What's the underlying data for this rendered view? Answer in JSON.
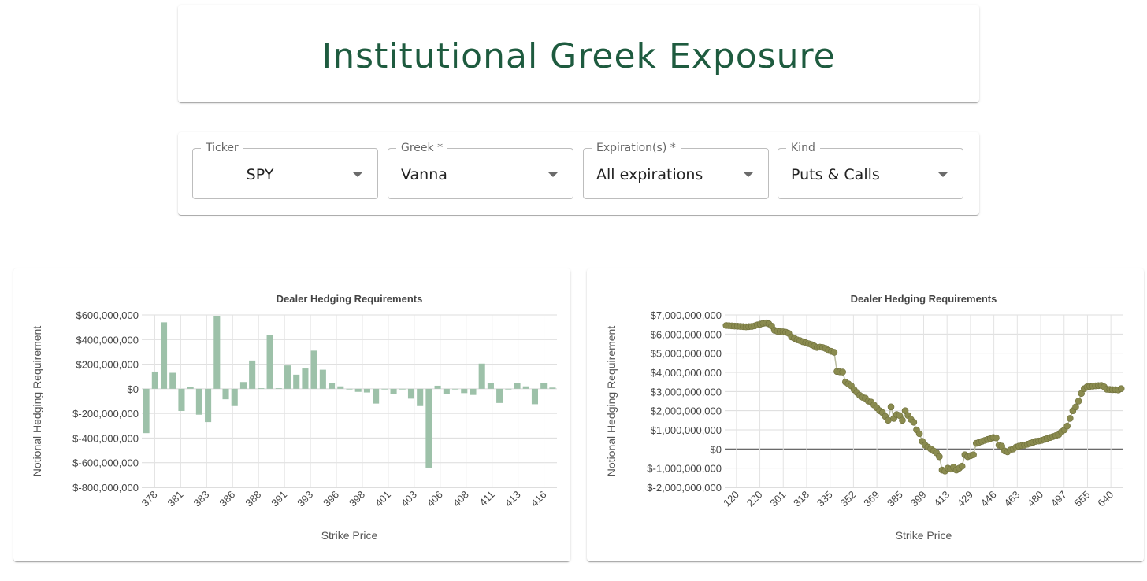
{
  "header": {
    "title": "Institutional Greek Exposure"
  },
  "controls": [
    {
      "label": "Ticker",
      "value": "SPY"
    },
    {
      "label": "Greek *",
      "value": "Vanna"
    },
    {
      "label": "Expiration(s) *",
      "value": "All expirations"
    },
    {
      "label": "Kind",
      "value": "Puts & Calls"
    }
  ],
  "icons": {
    "dropdown": "chevron-down-icon"
  },
  "colors": {
    "title": "#1e5b3f",
    "bar": "#9dc1a9",
    "point": "#8a8b4f",
    "line": "#b9bca0"
  },
  "chart_data": [
    {
      "type": "bar",
      "title": "Dealer Hedging Requirements",
      "xlabel": "Strike Price",
      "ylabel": "Notional Hedging Requirement",
      "ylim": [
        -800000000,
        600000000
      ],
      "yticks": [
        600000000,
        400000000,
        200000000,
        0,
        -200000000,
        -400000000,
        -600000000,
        -800000000
      ],
      "ytick_labels": [
        "$600,000,000",
        "$400,000,000",
        "$200,000,000",
        "$0",
        "$-200,000,000",
        "$-400,000,000",
        "$-600,000,000",
        "$-800,000,000"
      ],
      "xtick_labels": [
        "378",
        "381",
        "383",
        "386",
        "388",
        "391",
        "393",
        "396",
        "398",
        "401",
        "403",
        "406",
        "408",
        "411",
        "413",
        "416"
      ],
      "grid": true,
      "values": [
        -360000000,
        140000000,
        540000000,
        130000000,
        -180000000,
        15000000,
        -210000000,
        -270000000,
        590000000,
        -85000000,
        -140000000,
        55000000,
        230000000,
        5000000,
        440000000,
        5000000,
        190000000,
        115000000,
        165000000,
        310000000,
        155000000,
        50000000,
        20000000,
        0,
        -25000000,
        -30000000,
        -120000000,
        0,
        -40000000,
        0,
        -80000000,
        -140000000,
        -640000000,
        25000000,
        -40000000,
        0,
        -35000000,
        -50000000,
        205000000,
        50000000,
        -115000000,
        0,
        50000000,
        20000000,
        -125000000,
        50000000,
        10000000
      ]
    },
    {
      "type": "scatter",
      "title": "Dealer Hedging Requirements",
      "xlabel": "Strike Price",
      "ylabel": "Notional Hedging Requirement",
      "ylim": [
        -2000000000,
        7000000000
      ],
      "yticks": [
        7000000000,
        6000000000,
        5000000000,
        4000000000,
        3000000000,
        2000000000,
        1000000000,
        0,
        -1000000000,
        -2000000000
      ],
      "ytick_labels": [
        "$7,000,000,000",
        "$6,000,000,000",
        "$5,000,000,000",
        "$4,000,000,000",
        "$3,000,000,000",
        "$2,000,000,000",
        "$1,000,000,000",
        "$0",
        "$-1,000,000,000",
        "$-2,000,000,000"
      ],
      "xtick_labels": [
        "120",
        "220",
        "301",
        "318",
        "335",
        "352",
        "369",
        "385",
        "399",
        "413",
        "429",
        "446",
        "463",
        "480",
        "497",
        "555",
        "640"
      ],
      "grid": true,
      "values": [
        6450000000,
        6440000000,
        6430000000,
        6420000000,
        6410000000,
        6400000000,
        6390000000,
        6380000000,
        6390000000,
        6400000000,
        6430000000,
        6480000000,
        6520000000,
        6560000000,
        6580000000,
        6540000000,
        6420000000,
        6200000000,
        6150000000,
        6140000000,
        6120000000,
        6100000000,
        6040000000,
        5850000000,
        5780000000,
        5700000000,
        5660000000,
        5600000000,
        5550000000,
        5500000000,
        5450000000,
        5380000000,
        5300000000,
        5320000000,
        5300000000,
        5250000000,
        5150000000,
        5100000000,
        5050000000,
        4050000000,
        4030000000,
        4020000000,
        3500000000,
        3400000000,
        3300000000,
        3100000000,
        2950000000,
        2800000000,
        2700000000,
        2650000000,
        2500000000,
        2450000000,
        2300000000,
        2150000000,
        2000000000,
        1900000000,
        1700000000,
        1500000000,
        2200000000,
        1600000000,
        1800000000,
        1750000000,
        1500000000,
        2000000000,
        1750000000,
        1550000000,
        1400000000,
        1000000000,
        800000000,
        400000000,
        200000000,
        100000000,
        0,
        -100000000,
        -200000000,
        -400000000,
        -1100000000,
        -1150000000,
        -1000000000,
        -1050000000,
        -950000000,
        -1100000000,
        -1000000000,
        -900000000,
        -300000000,
        -400000000,
        -350000000,
        -300000000,
        300000000,
        350000000,
        400000000,
        450000000,
        500000000,
        550000000,
        600000000,
        580000000,
        200000000,
        150000000,
        -100000000,
        -150000000,
        -50000000,
        0,
        100000000,
        150000000,
        180000000,
        200000000,
        250000000,
        300000000,
        350000000,
        400000000,
        420000000,
        450000000,
        500000000,
        550000000,
        600000000,
        650000000,
        700000000,
        750000000,
        900000000,
        1000000000,
        1200000000,
        1600000000,
        2000000000,
        2200000000,
        2500000000,
        2900000000,
        3150000000,
        3250000000,
        3270000000,
        3280000000,
        3300000000,
        3310000000,
        3320000000,
        3250000000,
        3120000000,
        3110000000,
        3100000000,
        3100000000,
        3080000000,
        3150000000
      ]
    }
  ]
}
